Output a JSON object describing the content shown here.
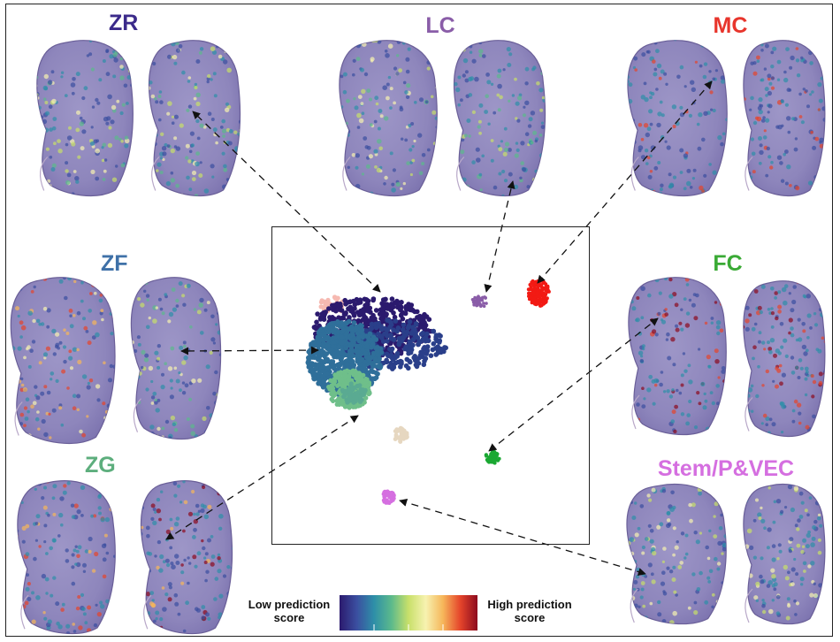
{
  "panels": {
    "zr": {
      "label": "ZR",
      "color": "#3b2a8a"
    },
    "lc": {
      "label": "LC",
      "color": "#8a5da8"
    },
    "mc": {
      "label": "MC",
      "color": "#e8352c"
    },
    "zf": {
      "label": "ZF",
      "color": "#3f71a8"
    },
    "fc": {
      "label": "FC",
      "color": "#3aaa35"
    },
    "zg": {
      "label": "ZG",
      "color": "#5dae7d"
    },
    "stem": {
      "label": "Stem/P&VEC",
      "color": "#d56fe0"
    }
  },
  "colorbar": {
    "low_label": "Low prediction score",
    "high_label": "High prediction score",
    "colors": [
      "#2b1a6e",
      "#3b4fa0",
      "#2e8fa8",
      "#5bb98c",
      "#c8e06a",
      "#f7f2b0",
      "#f6b65a",
      "#e5452b",
      "#8c0a1e"
    ]
  },
  "umap_clusters": [
    {
      "name": "main",
      "color": "#2f6f9a"
    },
    {
      "name": "zr-top",
      "color": "#2b1a6e"
    },
    {
      "name": "zg",
      "color": "#6fbf8a"
    },
    {
      "name": "lc",
      "color": "#8a5da8"
    },
    {
      "name": "mc",
      "color": "#f21a14"
    },
    {
      "name": "fc",
      "color": "#1aa832"
    },
    {
      "name": "stem",
      "color": "#d56fe0"
    },
    {
      "name": "pink",
      "color": "#f6b9b1"
    },
    {
      "name": "beige",
      "color": "#e6d7c0"
    }
  ]
}
